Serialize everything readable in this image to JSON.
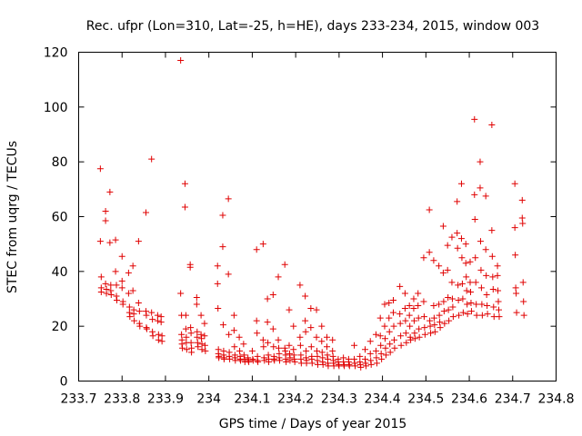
{
  "chart_data": {
    "type": "scatter",
    "title": "Rec. ufpr (Lon=310, Lat=-25, h=HE), days 233-234, 2015, window 003",
    "xlabel": "GPS time / Days of year 2015",
    "ylabel": "STEC from uqrg / TECUs",
    "xlim": [
      233.7,
      234.8
    ],
    "ylim": [
      0,
      120
    ],
    "xticks": [
      233.7,
      233.8,
      233.9,
      234.0,
      234.1,
      234.2,
      234.3,
      234.4,
      234.5,
      234.6,
      234.7,
      234.8
    ],
    "xtick_labels": [
      "233.7",
      "233.8",
      "233.9",
      "234",
      "234.1",
      "234.2",
      "234.3",
      "234.4",
      "234.5",
      "234.6",
      "234.7",
      "234.8"
    ],
    "yticks": [
      0,
      20,
      40,
      60,
      80,
      100,
      120
    ],
    "ytick_labels": [
      "0",
      "20",
      "40",
      "60",
      "80",
      "100",
      "120"
    ],
    "grid": false,
    "marker": "+",
    "color": "#e00000",
    "points": [
      [
        233.75,
        77.5
      ],
      [
        233.75,
        51.0
      ],
      [
        233.752,
        38.0
      ],
      [
        233.752,
        34.0
      ],
      [
        233.752,
        32.5
      ],
      [
        233.762,
        62.0
      ],
      [
        233.762,
        58.5
      ],
      [
        233.762,
        35.5
      ],
      [
        233.764,
        33.5
      ],
      [
        233.764,
        32.0
      ],
      [
        233.772,
        69.0
      ],
      [
        233.772,
        50.5
      ],
      [
        233.774,
        35.0
      ],
      [
        233.774,
        33.0
      ],
      [
        233.775,
        31.5
      ],
      [
        233.785,
        51.5
      ],
      [
        233.785,
        40.0
      ],
      [
        233.787,
        35.0
      ],
      [
        233.787,
        31.0
      ],
      [
        233.788,
        29.5
      ],
      [
        233.8,
        45.5
      ],
      [
        233.8,
        36.5
      ],
      [
        233.8,
        34.0
      ],
      [
        233.802,
        29.0
      ],
      [
        233.802,
        28.0
      ],
      [
        233.815,
        39.5
      ],
      [
        233.815,
        32.0
      ],
      [
        233.817,
        27.0
      ],
      [
        233.817,
        25.0
      ],
      [
        233.818,
        23.5
      ],
      [
        233.825,
        42.0
      ],
      [
        233.825,
        33.0
      ],
      [
        233.827,
        26.0
      ],
      [
        233.827,
        24.5
      ],
      [
        233.828,
        22.0
      ],
      [
        233.838,
        51.0
      ],
      [
        233.838,
        28.5
      ],
      [
        233.84,
        25.5
      ],
      [
        233.84,
        21.0
      ],
      [
        233.841,
        20.0
      ],
      [
        233.855,
        61.5
      ],
      [
        233.855,
        25.5
      ],
      [
        233.856,
        24.0
      ],
      [
        233.856,
        19.5
      ],
      [
        233.857,
        19.0
      ],
      [
        233.868,
        81.0
      ],
      [
        233.868,
        25.0
      ],
      [
        233.87,
        22.5
      ],
      [
        233.87,
        18.0
      ],
      [
        233.871,
        16.5
      ],
      [
        233.882,
        24.0
      ],
      [
        233.882,
        22.0
      ],
      [
        233.884,
        17.0
      ],
      [
        233.884,
        15.0
      ],
      [
        233.89,
        23.5
      ],
      [
        233.89,
        21.5
      ],
      [
        233.892,
        16.5
      ],
      [
        233.892,
        14.5
      ],
      [
        233.935,
        117.0
      ],
      [
        233.935,
        32.0
      ],
      [
        233.937,
        24.0
      ],
      [
        233.937,
        17.0
      ],
      [
        233.938,
        15.0
      ],
      [
        233.938,
        13.5
      ],
      [
        233.939,
        12.0
      ],
      [
        233.945,
        72.0
      ],
      [
        233.945,
        63.5
      ],
      [
        233.947,
        24.0
      ],
      [
        233.947,
        19.0
      ],
      [
        233.948,
        16.0
      ],
      [
        233.948,
        14.0
      ],
      [
        233.949,
        11.5
      ],
      [
        233.957,
        42.5
      ],
      [
        233.957,
        41.5
      ],
      [
        233.958,
        19.5
      ],
      [
        233.959,
        17.5
      ],
      [
        233.959,
        14.0
      ],
      [
        233.96,
        12.0
      ],
      [
        233.96,
        10.5
      ],
      [
        233.972,
        30.5
      ],
      [
        233.972,
        28.0
      ],
      [
        233.973,
        18.0
      ],
      [
        233.973,
        16.0
      ],
      [
        233.974,
        14.0
      ],
      [
        233.975,
        12.5
      ],
      [
        233.982,
        24.0
      ],
      [
        233.982,
        17.0
      ],
      [
        233.983,
        15.5
      ],
      [
        233.984,
        13.5
      ],
      [
        233.984,
        11.5
      ],
      [
        233.99,
        21.0
      ],
      [
        233.99,
        16.5
      ],
      [
        233.991,
        13.0
      ],
      [
        233.992,
        11.0
      ],
      [
        234.02,
        42.0
      ],
      [
        234.02,
        35.5
      ],
      [
        234.021,
        26.5
      ],
      [
        234.022,
        11.5
      ],
      [
        234.022,
        10.0
      ],
      [
        234.023,
        9.0
      ],
      [
        234.023,
        8.5
      ],
      [
        234.032,
        60.5
      ],
      [
        234.032,
        49.0
      ],
      [
        234.033,
        20.5
      ],
      [
        234.034,
        11.0
      ],
      [
        234.034,
        9.5
      ],
      [
        234.035,
        8.5
      ],
      [
        234.035,
        8.0
      ],
      [
        234.045,
        66.5
      ],
      [
        234.045,
        39.0
      ],
      [
        234.046,
        17.0
      ],
      [
        234.047,
        10.5
      ],
      [
        234.047,
        9.0
      ],
      [
        234.048,
        8.0
      ],
      [
        234.058,
        24.0
      ],
      [
        234.058,
        18.5
      ],
      [
        234.059,
        12.5
      ],
      [
        234.06,
        9.5
      ],
      [
        234.06,
        8.5
      ],
      [
        234.061,
        7.5
      ],
      [
        234.07,
        16.0
      ],
      [
        234.071,
        11.0
      ],
      [
        234.072,
        9.0
      ],
      [
        234.072,
        8.0
      ],
      [
        234.073,
        7.5
      ],
      [
        234.08,
        13.5
      ],
      [
        234.081,
        9.5
      ],
      [
        234.082,
        8.0
      ],
      [
        234.083,
        7.0
      ],
      [
        234.09,
        8.5
      ],
      [
        234.091,
        7.5
      ],
      [
        234.092,
        7.0
      ],
      [
        234.1,
        11.0
      ],
      [
        234.101,
        8.0
      ],
      [
        234.102,
        7.5
      ],
      [
        234.11,
        48.0
      ],
      [
        234.11,
        22.0
      ],
      [
        234.111,
        17.5
      ],
      [
        234.112,
        9.0
      ],
      [
        234.112,
        7.5
      ],
      [
        234.113,
        7.0
      ],
      [
        234.125,
        50.0
      ],
      [
        234.125,
        15.0
      ],
      [
        234.126,
        12.5
      ],
      [
        234.127,
        8.5
      ],
      [
        234.128,
        7.5
      ],
      [
        234.135,
        30.0
      ],
      [
        234.135,
        21.5
      ],
      [
        234.136,
        14.0
      ],
      [
        234.137,
        9.5
      ],
      [
        234.138,
        8.0
      ],
      [
        234.138,
        7.0
      ],
      [
        234.148,
        31.5
      ],
      [
        234.148,
        19.0
      ],
      [
        234.149,
        12.5
      ],
      [
        234.15,
        9.0
      ],
      [
        234.15,
        8.0
      ],
      [
        234.151,
        7.5
      ],
      [
        234.16,
        38.0
      ],
      [
        234.16,
        15.0
      ],
      [
        234.161,
        12.0
      ],
      [
        234.162,
        10.0
      ],
      [
        234.162,
        8.5
      ],
      [
        234.163,
        7.5
      ],
      [
        234.175,
        42.5
      ],
      [
        234.175,
        12.0
      ],
      [
        234.176,
        11.0
      ],
      [
        234.177,
        9.5
      ],
      [
        234.177,
        8.0
      ],
      [
        234.178,
        7.0
      ],
      [
        234.185,
        26.0
      ],
      [
        234.185,
        13.0
      ],
      [
        234.186,
        10.0
      ],
      [
        234.187,
        8.5
      ],
      [
        234.187,
        7.5
      ],
      [
        234.195,
        20.0
      ],
      [
        234.195,
        11.5
      ],
      [
        234.196,
        9.5
      ],
      [
        234.197,
        8.0
      ],
      [
        234.198,
        7.0
      ],
      [
        234.21,
        35.0
      ],
      [
        234.21,
        16.0
      ],
      [
        234.211,
        13.0
      ],
      [
        234.212,
        9.5
      ],
      [
        234.212,
        8.0
      ],
      [
        234.213,
        6.5
      ],
      [
        234.222,
        31.0
      ],
      [
        234.222,
        22.0
      ],
      [
        234.223,
        18.0
      ],
      [
        234.224,
        11.0
      ],
      [
        234.224,
        8.5
      ],
      [
        234.225,
        7.5
      ],
      [
        234.225,
        6.5
      ],
      [
        234.235,
        26.5
      ],
      [
        234.235,
        19.5
      ],
      [
        234.236,
        12.5
      ],
      [
        234.237,
        9.0
      ],
      [
        234.237,
        8.0
      ],
      [
        234.238,
        6.5
      ],
      [
        234.248,
        26.0
      ],
      [
        234.248,
        16.0
      ],
      [
        234.249,
        11.0
      ],
      [
        234.25,
        9.0
      ],
      [
        234.25,
        7.5
      ],
      [
        234.251,
        6.0
      ],
      [
        234.26,
        20.0
      ],
      [
        234.26,
        14.5
      ],
      [
        234.261,
        10.5
      ],
      [
        234.262,
        8.5
      ],
      [
        234.262,
        7.0
      ],
      [
        234.263,
        6.0
      ],
      [
        234.272,
        16.0
      ],
      [
        234.272,
        12.5
      ],
      [
        234.273,
        9.5
      ],
      [
        234.274,
        8.0
      ],
      [
        234.274,
        6.5
      ],
      [
        234.275,
        5.5
      ],
      [
        234.285,
        15.0
      ],
      [
        234.285,
        11.0
      ],
      [
        234.286,
        9.0
      ],
      [
        234.287,
        7.5
      ],
      [
        234.287,
        6.5
      ],
      [
        234.288,
        5.5
      ],
      [
        234.298,
        8.0
      ],
      [
        234.298,
        7.0
      ],
      [
        234.299,
        6.0
      ],
      [
        234.3,
        5.5
      ],
      [
        234.31,
        8.5
      ],
      [
        234.31,
        7.0
      ],
      [
        234.311,
        6.0
      ],
      [
        234.312,
        5.5
      ],
      [
        234.322,
        8.0
      ],
      [
        234.322,
        7.0
      ],
      [
        234.323,
        6.0
      ],
      [
        234.324,
        5.5
      ],
      [
        234.335,
        13.0
      ],
      [
        234.335,
        8.0
      ],
      [
        234.336,
        6.5
      ],
      [
        234.337,
        5.5
      ],
      [
        234.348,
        9.0
      ],
      [
        234.348,
        7.0
      ],
      [
        234.349,
        6.0
      ],
      [
        234.35,
        5.0
      ],
      [
        234.36,
        11.5
      ],
      [
        234.36,
        8.0
      ],
      [
        234.361,
        6.5
      ],
      [
        234.362,
        5.5
      ],
      [
        234.372,
        14.5
      ],
      [
        234.372,
        10.0
      ],
      [
        234.373,
        7.5
      ],
      [
        234.374,
        6.0
      ],
      [
        234.385,
        17.0
      ],
      [
        234.385,
        11.0
      ],
      [
        234.386,
        8.5
      ],
      [
        234.387,
        6.5
      ],
      [
        234.395,
        23.0
      ],
      [
        234.395,
        16.5
      ],
      [
        234.396,
        13.0
      ],
      [
        234.397,
        10.0
      ],
      [
        234.398,
        8.0
      ],
      [
        234.405,
        28.0
      ],
      [
        234.405,
        20.0
      ],
      [
        234.406,
        15.5
      ],
      [
        234.407,
        12.0
      ],
      [
        234.408,
        9.5
      ],
      [
        234.415,
        28.5
      ],
      [
        234.415,
        23.0
      ],
      [
        234.416,
        18.0
      ],
      [
        234.417,
        13.5
      ],
      [
        234.418,
        10.5
      ],
      [
        234.425,
        29.5
      ],
      [
        234.425,
        25.0
      ],
      [
        234.426,
        20.0
      ],
      [
        234.427,
        15.0
      ],
      [
        234.428,
        12.0
      ],
      [
        234.44,
        34.5
      ],
      [
        234.44,
        24.5
      ],
      [
        234.441,
        21.0
      ],
      [
        234.442,
        16.5
      ],
      [
        234.443,
        13.0
      ],
      [
        234.452,
        32.0
      ],
      [
        234.452,
        26.5
      ],
      [
        234.453,
        22.0
      ],
      [
        234.454,
        17.5
      ],
      [
        234.455,
        14.0
      ],
      [
        234.462,
        27.5
      ],
      [
        234.462,
        24.0
      ],
      [
        234.463,
        20.0
      ],
      [
        234.464,
        16.0
      ],
      [
        234.465,
        15.0
      ],
      [
        234.472,
        30.0
      ],
      [
        234.472,
        26.5
      ],
      [
        234.473,
        22.0
      ],
      [
        234.474,
        17.5
      ],
      [
        234.475,
        15.5
      ],
      [
        234.482,
        32.0
      ],
      [
        234.482,
        27.5
      ],
      [
        234.483,
        23.0
      ],
      [
        234.484,
        19.0
      ],
      [
        234.485,
        16.0
      ],
      [
        234.495,
        45.0
      ],
      [
        234.495,
        29.0
      ],
      [
        234.496,
        23.5
      ],
      [
        234.497,
        19.5
      ],
      [
        234.498,
        17.0
      ],
      [
        234.508,
        62.5
      ],
      [
        234.508,
        47.0
      ],
      [
        234.509,
        22.0
      ],
      [
        234.51,
        20.0
      ],
      [
        234.511,
        17.5
      ],
      [
        234.518,
        44.0
      ],
      [
        234.518,
        27.5
      ],
      [
        234.519,
        23.0
      ],
      [
        234.52,
        20.5
      ],
      [
        234.521,
        18.0
      ],
      [
        234.53,
        42.0
      ],
      [
        234.53,
        28.0
      ],
      [
        234.531,
        24.0
      ],
      [
        234.532,
        21.5
      ],
      [
        234.533,
        19.5
      ],
      [
        234.54,
        56.5
      ],
      [
        234.54,
        39.5
      ],
      [
        234.541,
        29.0
      ],
      [
        234.542,
        25.5
      ],
      [
        234.543,
        21.0
      ],
      [
        234.55,
        49.5
      ],
      [
        234.55,
        40.5
      ],
      [
        234.551,
        30.5
      ],
      [
        234.552,
        26.0
      ],
      [
        234.553,
        22.0
      ],
      [
        234.56,
        52.5
      ],
      [
        234.56,
        36.0
      ],
      [
        234.561,
        30.0
      ],
      [
        234.562,
        27.0
      ],
      [
        234.563,
        23.5
      ],
      [
        234.572,
        65.5
      ],
      [
        234.572,
        54.0
      ],
      [
        234.573,
        48.5
      ],
      [
        234.574,
        35.0
      ],
      [
        234.575,
        29.5
      ],
      [
        234.576,
        24.0
      ],
      [
        234.582,
        72.0
      ],
      [
        234.582,
        52.0
      ],
      [
        234.583,
        45.0
      ],
      [
        234.584,
        35.5
      ],
      [
        234.585,
        30.0
      ],
      [
        234.586,
        25.0
      ],
      [
        234.592,
        50.0
      ],
      [
        234.592,
        43.0
      ],
      [
        234.593,
        38.0
      ],
      [
        234.594,
        33.0
      ],
      [
        234.595,
        28.0
      ],
      [
        234.596,
        24.5
      ],
      [
        234.602,
        43.5
      ],
      [
        234.602,
        36.0
      ],
      [
        234.603,
        32.5
      ],
      [
        234.604,
        28.5
      ],
      [
        234.605,
        25.5
      ],
      [
        234.612,
        95.5
      ],
      [
        234.612,
        68.0
      ],
      [
        234.613,
        59.0
      ],
      [
        234.614,
        45.0
      ],
      [
        234.615,
        36.0
      ],
      [
        234.616,
        28.0
      ],
      [
        234.617,
        24.0
      ],
      [
        234.625,
        80.0
      ],
      [
        234.625,
        70.5
      ],
      [
        234.626,
        51.0
      ],
      [
        234.627,
        40.5
      ],
      [
        234.628,
        34.0
      ],
      [
        234.629,
        28.0
      ],
      [
        234.63,
        24.0
      ],
      [
        234.638,
        67.5
      ],
      [
        234.638,
        48.0
      ],
      [
        234.639,
        38.5
      ],
      [
        234.64,
        31.5
      ],
      [
        234.641,
        27.5
      ],
      [
        234.642,
        24.5
      ],
      [
        234.652,
        93.5
      ],
      [
        234.652,
        55.0
      ],
      [
        234.653,
        45.5
      ],
      [
        234.654,
        38.0
      ],
      [
        234.655,
        33.5
      ],
      [
        234.656,
        27.0
      ],
      [
        234.657,
        23.5
      ],
      [
        234.665,
        42.0
      ],
      [
        234.665,
        38.5
      ],
      [
        234.666,
        33.0
      ],
      [
        234.667,
        29.0
      ],
      [
        234.668,
        26.0
      ],
      [
        234.669,
        23.5
      ],
      [
        234.705,
        72.0
      ],
      [
        234.705,
        56.0
      ],
      [
        234.706,
        46.0
      ],
      [
        234.707,
        34.0
      ],
      [
        234.708,
        32.0
      ],
      [
        234.709,
        25.0
      ],
      [
        234.722,
        66.0
      ],
      [
        234.722,
        59.5
      ],
      [
        234.723,
        57.5
      ],
      [
        234.724,
        36.0
      ],
      [
        234.725,
        29.0
      ],
      [
        234.726,
        24.0
      ]
    ]
  }
}
